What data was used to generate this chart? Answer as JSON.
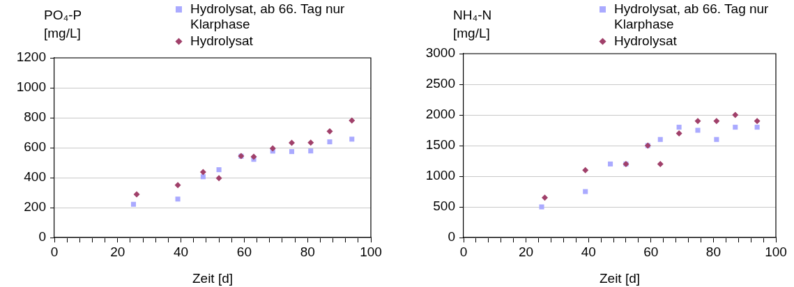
{
  "chart_data": [
    {
      "type": "scatter",
      "ylabel": "PO₄-P [mg/L]",
      "xlabel": "Zeit [d]",
      "xlim": [
        0,
        100
      ],
      "ylim": [
        0,
        1200
      ],
      "xticks": [
        0,
        {
          "value": 4,
          "label": null
        },
        {
          "value": 8,
          "label": null
        },
        {
          "value": 12,
          "label": null
        },
        {
          "value": 16,
          "label": null
        },
        20,
        {
          "value": 24,
          "label": null
        },
        {
          "value": 28,
          "label": null
        },
        {
          "value": 32,
          "label": null
        },
        {
          "value": 36,
          "label": null
        },
        40,
        {
          "value": 44,
          "label": null
        },
        {
          "value": 48,
          "label": null
        },
        {
          "value": 52,
          "label": null
        },
        {
          "value": 56,
          "label": null
        },
        60,
        {
          "value": 64,
          "label": null
        },
        {
          "value": 68,
          "label": null
        },
        {
          "value": 72,
          "label": null
        },
        {
          "value": 76,
          "label": null
        },
        80,
        {
          "value": 84,
          "label": null
        },
        {
          "value": 88,
          "label": null
        },
        {
          "value": 92,
          "label": null
        },
        {
          "value": 96,
          "label": null
        },
        100
      ],
      "yticks": [
        0,
        200,
        400,
        600,
        800,
        1000,
        1200
      ],
      "grid": "y",
      "legend": "top",
      "series": [
        {
          "name": "Hydrolysat, ab 66. Tag nur Klarphase",
          "color": "#aaaaff",
          "marker": "square",
          "x": [
            25,
            39,
            47,
            52,
            59,
            63,
            69,
            75,
            81,
            87,
            94
          ],
          "values": [
            222,
            257,
            406,
            453,
            543,
            522,
            577,
            574,
            578,
            639,
            657
          ]
        },
        {
          "name": "Hydrolysat",
          "color": "#a0406a",
          "marker": "diamond",
          "x": [
            26,
            39,
            47,
            52,
            59,
            63,
            69,
            75,
            81,
            87,
            94
          ],
          "values": [
            288,
            350,
            437,
            397,
            544,
            540,
            595,
            633,
            634,
            709,
            781
          ]
        }
      ]
    },
    {
      "type": "scatter",
      "ylabel": "NH₄-N [mg/L]",
      "xlabel": "Zeit [d]",
      "xlim": [
        0,
        100
      ],
      "ylim": [
        0,
        3000
      ],
      "xticks": [
        0,
        {
          "value": 4,
          "label": null
        },
        {
          "value": 8,
          "label": null
        },
        {
          "value": 12,
          "label": null
        },
        {
          "value": 16,
          "label": null
        },
        20,
        {
          "value": 24,
          "label": null
        },
        {
          "value": 28,
          "label": null
        },
        {
          "value": 32,
          "label": null
        },
        {
          "value": 36,
          "label": null
        },
        40,
        {
          "value": 44,
          "label": null
        },
        {
          "value": 48,
          "label": null
        },
        {
          "value": 52,
          "label": null
        },
        {
          "value": 56,
          "label": null
        },
        60,
        {
          "value": 64,
          "label": null
        },
        {
          "value": 68,
          "label": null
        },
        {
          "value": 72,
          "label": null
        },
        {
          "value": 76,
          "label": null
        },
        80,
        {
          "value": 84,
          "label": null
        },
        {
          "value": 88,
          "label": null
        },
        {
          "value": 92,
          "label": null
        },
        {
          "value": 96,
          "label": null
        },
        100
      ],
      "yticks": [
        0,
        500,
        1000,
        1500,
        2000,
        2500,
        3000
      ],
      "grid": "y",
      "legend": "top",
      "series": [
        {
          "name": "Hydrolysat, ab 66. Tag nur Klarphase",
          "color": "#aaaaff",
          "marker": "square",
          "x": [
            25,
            39,
            47,
            52,
            59,
            63,
            69,
            75,
            81,
            87,
            94
          ],
          "values": [
            500,
            750,
            1200,
            1200,
            1500,
            1600,
            1800,
            1750,
            1600,
            1800,
            1800
          ]
        },
        {
          "name": "Hydrolysat",
          "color": "#a0406a",
          "marker": "diamond",
          "x": [
            26,
            39,
            52,
            59,
            63,
            69,
            75,
            81,
            87,
            94
          ],
          "values": [
            650,
            1100,
            1200,
            1500,
            1200,
            1700,
            1900,
            1900,
            2000,
            1900
          ]
        }
      ]
    }
  ]
}
